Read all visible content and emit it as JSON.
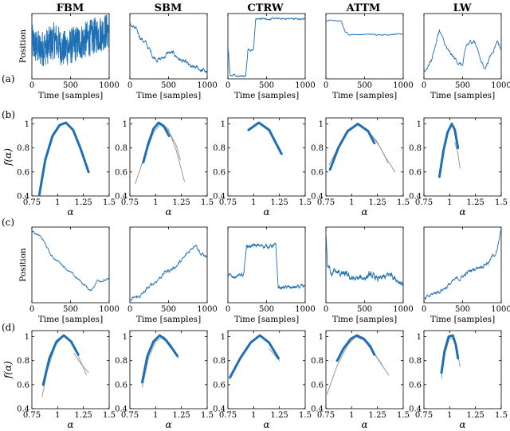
{
  "figure": {
    "row_labels": [
      "(a)",
      "(b)",
      "(c)",
      "(d)"
    ],
    "column_titles": [
      "FBM",
      "SBM",
      "CTRW",
      "ATTM",
      "LW"
    ],
    "position_ylabel": "Position",
    "time_xlabel": "Time [samples]",
    "alpha_xlabel": "α",
    "spectrum_ylabel": "f(α)",
    "colors": {
      "signal": "#1f6fb4",
      "fit_gray": "#9a9a9a",
      "axis": "#000000"
    }
  },
  "chart_data": [
    {
      "type": "line",
      "row": "a",
      "title": "FBM",
      "ylabel": "Position",
      "xlabel": "Time [samples]",
      "xlim": [
        0,
        1000
      ],
      "x_ticks": [
        "0",
        "500",
        "1000"
      ],
      "grid": false,
      "series": [
        {
          "color": "#1f6fb4",
          "shape": "fbm",
          "x": [
            0,
            100,
            200,
            300,
            400,
            500,
            600,
            700,
            800,
            900,
            1000
          ],
          "y": [
            0.55,
            0.45,
            0.5,
            0.6,
            0.45,
            0.5,
            0.55,
            0.6,
            0.65,
            0.7,
            0.75
          ]
        }
      ]
    },
    {
      "type": "line",
      "row": "a",
      "title": "SBM",
      "xlabel": "Time [samples]",
      "xlim": [
        0,
        1000
      ],
      "x_ticks": [
        "0",
        "500",
        "1000"
      ],
      "grid": false,
      "series": [
        {
          "color": "#1f6fb4",
          "shape": "sbm",
          "x": [
            0,
            100,
            200,
            300,
            400,
            500,
            600,
            700,
            800,
            900,
            1000
          ],
          "y": [
            0.85,
            0.7,
            0.55,
            0.35,
            0.3,
            0.4,
            0.35,
            0.25,
            0.15,
            0.15,
            0.1
          ]
        }
      ]
    },
    {
      "type": "line",
      "row": "a",
      "title": "CTRW",
      "xlabel": "Time [samples]",
      "xlim": [
        0,
        1000
      ],
      "x_ticks": [
        "0",
        "500",
        "1000"
      ],
      "grid": false,
      "series": [
        {
          "color": "#1f6fb4",
          "shape": "ctrw",
          "x": [
            0,
            30,
            230,
            260,
            330,
            360,
            1000
          ],
          "y": [
            0.5,
            0.05,
            0.05,
            0.45,
            0.45,
            0.92,
            0.92
          ]
        }
      ]
    },
    {
      "type": "line",
      "row": "a",
      "title": "ATTM",
      "xlabel": "Time [samples]",
      "xlim": [
        0,
        1000
      ],
      "x_ticks": [
        "0",
        "500",
        "1000"
      ],
      "grid": false,
      "series": [
        {
          "color": "#1f6fb4",
          "shape": "attm",
          "x": [
            0,
            50,
            200,
            250,
            300,
            1000
          ],
          "y": [
            0.88,
            0.9,
            0.88,
            0.72,
            0.68,
            0.68
          ]
        }
      ]
    },
    {
      "type": "line",
      "row": "a",
      "title": "LW",
      "xlabel": "Time [samples]",
      "xlim": [
        0,
        1000
      ],
      "x_ticks": [
        "0",
        "500",
        "1000"
      ],
      "grid": false,
      "series": [
        {
          "color": "#1f6fb4",
          "shape": "lw",
          "x": [
            0,
            100,
            200,
            260,
            320,
            400,
            500,
            550,
            650,
            780,
            880,
            950,
            1000
          ],
          "y": [
            0.1,
            0.3,
            0.75,
            0.55,
            0.4,
            0.3,
            0.2,
            0.5,
            0.6,
            0.15,
            0.4,
            0.6,
            0.45
          ]
        }
      ]
    },
    {
      "type": "line",
      "row": "b",
      "ylabel": "f(α)",
      "xlabel": "α",
      "xlim": [
        0.75,
        1.5
      ],
      "ylim": [
        0.4,
        1.05
      ],
      "x_ticks": [
        "0.75",
        "1",
        "1.25",
        "1.5"
      ],
      "y_ticks": [
        "0.4",
        "0.6",
        "0.8",
        "1"
      ],
      "grid": false,
      "series": [
        {
          "color": "#1f6fb4",
          "width": 3,
          "x": [
            0.82,
            0.88,
            0.95,
            1.02,
            1.08,
            1.15,
            1.22,
            1.3
          ],
          "y": [
            0.4,
            0.7,
            0.9,
            0.99,
            1.01,
            0.95,
            0.8,
            0.6
          ]
        }
      ]
    },
    {
      "type": "line",
      "row": "b",
      "xlabel": "α",
      "xlim": [
        0.75,
        1.5
      ],
      "ylim": [
        0.4,
        1.05
      ],
      "x_ticks": [
        "0.75",
        "1",
        "1.25",
        "1.5"
      ],
      "y_ticks": [
        "0.4",
        "0.6",
        "0.8",
        "1"
      ],
      "grid": false,
      "series": [
        {
          "color": "#9a9a9a",
          "width": 1,
          "x": [
            0.8,
            0.88,
            0.98,
            1.05,
            1.12,
            1.2,
            1.28
          ],
          "y": [
            0.5,
            0.7,
            0.93,
            1.0,
            0.96,
            0.78,
            0.52
          ]
        },
        {
          "color": "#9a9a9a",
          "width": 1,
          "x": [
            1.08,
            1.14,
            1.2,
            1.24
          ],
          "y": [
            0.99,
            0.92,
            0.82,
            0.7
          ]
        },
        {
          "color": "#1f6fb4",
          "width": 3,
          "x": [
            0.88,
            0.93,
            0.98,
            1.03,
            1.08,
            1.13
          ],
          "y": [
            0.68,
            0.84,
            0.96,
            1.01,
            0.98,
            0.9
          ]
        }
      ]
    },
    {
      "type": "line",
      "row": "b",
      "xlabel": "α",
      "xlim": [
        0.75,
        1.5
      ],
      "ylim": [
        0.4,
        1.05
      ],
      "x_ticks": [
        "0.75",
        "1",
        "1.25",
        "1.5"
      ],
      "y_ticks": [
        "0.4",
        "0.6",
        "0.8",
        "1"
      ],
      "grid": false,
      "series": [
        {
          "color": "#1f6fb4",
          "width": 3,
          "x": [
            0.95,
            1.05,
            1.15,
            1.27
          ],
          "y": [
            0.95,
            1.01,
            0.95,
            0.75
          ]
        }
      ]
    },
    {
      "type": "line",
      "row": "b",
      "xlabel": "α",
      "xlim": [
        0.75,
        1.5
      ],
      "ylim": [
        0.4,
        1.05
      ],
      "x_ticks": [
        "0.75",
        "1",
        "1.25",
        "1.5"
      ],
      "y_ticks": [
        "0.4",
        "0.6",
        "0.8",
        "1"
      ],
      "grid": false,
      "series": [
        {
          "color": "#9a9a9a",
          "width": 1,
          "x": [
            0.78,
            0.88,
            0.98,
            1.06,
            1.14,
            1.24,
            1.33,
            1.42
          ],
          "y": [
            0.66,
            0.82,
            0.95,
            1.0,
            0.96,
            0.86,
            0.72,
            0.6
          ]
        },
        {
          "color": "#9a9a9a",
          "width": 1,
          "x": [
            1.1,
            1.2,
            1.28,
            1.35
          ],
          "y": [
            0.98,
            0.9,
            0.8,
            0.68
          ]
        },
        {
          "color": "#1f6fb4",
          "width": 3,
          "x": [
            0.79,
            0.87,
            0.96,
            1.06,
            1.16,
            1.22
          ],
          "y": [
            0.62,
            0.8,
            0.94,
            1.0,
            0.94,
            0.84
          ]
        }
      ]
    },
    {
      "type": "line",
      "row": "b",
      "xlabel": "α",
      "xlim": [
        0.75,
        1.5
      ],
      "ylim": [
        0.4,
        1.05
      ],
      "x_ticks": [
        "0.75",
        "1",
        "1.25",
        "1.5"
      ],
      "y_ticks": [
        "0.4",
        "0.6",
        "0.8",
        "1"
      ],
      "grid": false,
      "series": [
        {
          "color": "#9a9a9a",
          "width": 1,
          "x": [
            1.05,
            1.08,
            1.1
          ],
          "y": [
            0.85,
            0.75,
            0.63
          ]
        },
        {
          "color": "#1f6fb4",
          "width": 3,
          "x": [
            0.9,
            0.94,
            0.98,
            1.02,
            1.05,
            1.08
          ],
          "y": [
            0.56,
            0.78,
            0.93,
            1.0,
            0.95,
            0.8
          ]
        }
      ]
    },
    {
      "type": "line",
      "row": "c",
      "title": "",
      "ylabel": "Position",
      "xlabel": "Time [samples]",
      "xlim": [
        0,
        1000
      ],
      "x_ticks": [
        "0",
        "500",
        "1000"
      ],
      "grid": false,
      "series": [
        {
          "color": "#1f6fb4",
          "shape": "c1",
          "x": [
            0,
            60,
            150,
            250,
            400,
            550,
            700,
            760,
            850,
            1000
          ],
          "y": [
            0.95,
            0.92,
            0.82,
            0.62,
            0.5,
            0.35,
            0.22,
            0.15,
            0.3,
            0.3
          ]
        }
      ]
    },
    {
      "type": "line",
      "row": "c",
      "xlabel": "Time [samples]",
      "xlim": [
        0,
        1000
      ],
      "x_ticks": [
        "0",
        "500",
        "1000"
      ],
      "grid": false,
      "series": [
        {
          "color": "#1f6fb4",
          "shape": "c2",
          "x": [
            0,
            150,
            300,
            450,
            550,
            700,
            850,
            920,
            1000
          ],
          "y": [
            0.02,
            0.1,
            0.25,
            0.4,
            0.45,
            0.58,
            0.8,
            0.65,
            0.6
          ]
        }
      ]
    },
    {
      "type": "line",
      "row": "c",
      "xlabel": "Time [samples]",
      "xlim": [
        0,
        1000
      ],
      "x_ticks": [
        "0",
        "500",
        "1000"
      ],
      "grid": false,
      "series": [
        {
          "color": "#1f6fb4",
          "shape": "c3",
          "x": [
            0,
            200,
            240,
            620,
            650,
            1000
          ],
          "y": [
            0.35,
            0.35,
            0.75,
            0.75,
            0.2,
            0.2
          ]
        }
      ]
    },
    {
      "type": "line",
      "row": "c",
      "xlabel": "Time [samples]",
      "xlim": [
        0,
        1000
      ],
      "x_ticks": [
        "0",
        "500",
        "1000"
      ],
      "grid": false,
      "series": [
        {
          "color": "#1f6fb4",
          "shape": "c4",
          "x": [
            0,
            20,
            60,
            200,
            400,
            550,
            700,
            850,
            1000
          ],
          "y": [
            0.95,
            0.5,
            0.42,
            0.38,
            0.3,
            0.36,
            0.3,
            0.38,
            0.25
          ]
        }
      ]
    },
    {
      "type": "line",
      "row": "c",
      "xlabel": "Time [samples]",
      "xlim": [
        0,
        1000
      ],
      "x_ticks": [
        "0",
        "500",
        "1000"
      ],
      "grid": false,
      "series": [
        {
          "color": "#1f6fb4",
          "shape": "c5",
          "x": [
            0,
            100,
            300,
            500,
            700,
            850,
            950,
            1000
          ],
          "y": [
            0.02,
            0.1,
            0.22,
            0.35,
            0.48,
            0.55,
            0.7,
            0.95
          ]
        }
      ]
    },
    {
      "type": "line",
      "row": "d",
      "ylabel": "f(α)",
      "xlabel": "α",
      "xlim": [
        0.75,
        1.5
      ],
      "ylim": [
        0.4,
        1.05
      ],
      "x_ticks": [
        "0.75",
        "1",
        "1.25",
        "1.5"
      ],
      "y_ticks": [
        "0.4",
        "0.6",
        "0.8",
        "1"
      ],
      "grid": false,
      "series": [
        {
          "color": "#9a9a9a",
          "width": 1,
          "x": [
            0.85,
            0.9,
            0.98,
            1.06,
            1.14,
            1.22,
            1.28
          ],
          "y": [
            0.5,
            0.72,
            0.93,
            1.01,
            0.96,
            0.8,
            0.68
          ]
        },
        {
          "color": "#9a9a9a",
          "width": 1,
          "x": [
            1.16,
            1.22,
            1.3
          ],
          "y": [
            0.86,
            0.78,
            0.7
          ]
        },
        {
          "color": "#1f6fb4",
          "width": 3,
          "x": [
            0.86,
            0.92,
            0.99,
            1.06,
            1.13,
            1.2
          ],
          "y": [
            0.6,
            0.82,
            0.96,
            1.01,
            0.96,
            0.85
          ]
        }
      ]
    },
    {
      "type": "line",
      "row": "d",
      "xlabel": "α",
      "xlim": [
        0.75,
        1.5
      ],
      "ylim": [
        0.4,
        1.05
      ],
      "x_ticks": [
        "0.75",
        "1",
        "1.25",
        "1.5"
      ],
      "y_ticks": [
        "0.4",
        "0.6",
        "0.8",
        "1"
      ],
      "grid": false,
      "series": [
        {
          "color": "#9a9a9a",
          "width": 1,
          "x": [
            0.87,
            0.93,
            1.0,
            1.08,
            1.15,
            1.22
          ],
          "y": [
            0.58,
            0.82,
            0.96,
            1.0,
            0.93,
            0.82
          ]
        },
        {
          "color": "#1f6fb4",
          "width": 3,
          "x": [
            0.87,
            0.92,
            0.98,
            1.04,
            1.1,
            1.17,
            1.21
          ],
          "y": [
            0.62,
            0.84,
            0.96,
            1.01,
            0.97,
            0.89,
            0.84
          ]
        }
      ]
    },
    {
      "type": "line",
      "row": "d",
      "xlabel": "α",
      "xlim": [
        0.75,
        1.5
      ],
      "ylim": [
        0.4,
        1.05
      ],
      "x_ticks": [
        "0.75",
        "1",
        "1.25",
        "1.5"
      ],
      "y_ticks": [
        "0.4",
        "0.6",
        "0.8",
        "1"
      ],
      "grid": false,
      "series": [
        {
          "color": "#9a9a9a",
          "width": 1,
          "x": [
            1.15,
            1.2,
            1.25
          ],
          "y": [
            0.9,
            0.85,
            0.8
          ]
        },
        {
          "color": "#1f6fb4",
          "width": 3,
          "x": [
            0.77,
            0.87,
            0.97,
            1.06,
            1.15,
            1.24
          ],
          "y": [
            0.66,
            0.82,
            0.95,
            1.01,
            0.95,
            0.82
          ]
        }
      ]
    },
    {
      "type": "line",
      "row": "d",
      "xlabel": "α",
      "xlim": [
        0.75,
        1.5
      ],
      "ylim": [
        0.4,
        1.05
      ],
      "x_ticks": [
        "0.75",
        "1",
        "1.25",
        "1.5"
      ],
      "y_ticks": [
        "0.4",
        "0.6",
        "0.8",
        "1"
      ],
      "grid": false,
      "series": [
        {
          "color": "#9a9a9a",
          "width": 1,
          "x": [
            0.76,
            0.86,
            0.96,
            1.04,
            1.12,
            1.2,
            1.28,
            1.36
          ],
          "y": [
            0.52,
            0.76,
            0.93,
            1.0,
            0.97,
            0.88,
            0.78,
            0.68
          ]
        },
        {
          "color": "#9a9a9a",
          "width": 1,
          "x": [
            1.14,
            1.22,
            1.3
          ],
          "y": [
            0.95,
            0.86,
            0.76
          ]
        },
        {
          "color": "#1f6fb4",
          "width": 3,
          "x": [
            0.86,
            0.92,
            0.99,
            1.05,
            1.12,
            1.18,
            1.22
          ],
          "y": [
            0.8,
            0.9,
            0.98,
            1.01,
            0.98,
            0.92,
            0.85
          ]
        }
      ]
    },
    {
      "type": "line",
      "row": "d",
      "xlabel": "α",
      "xlim": [
        0.75,
        1.5
      ],
      "ylim": [
        0.4,
        1.05
      ],
      "x_ticks": [
        "0.75",
        "1",
        "1.25",
        "1.5"
      ],
      "y_ticks": [
        "0.4",
        "0.6",
        "0.8",
        "1"
      ],
      "grid": false,
      "series": [
        {
          "color": "#9a9a9a",
          "width": 1,
          "x": [
            0.92,
            0.95,
            1.0,
            1.05,
            1.08,
            1.1
          ],
          "y": [
            0.65,
            0.85,
            0.99,
            0.97,
            0.85,
            0.75
          ]
        },
        {
          "color": "#1f6fb4",
          "width": 3,
          "x": [
            0.92,
            0.95,
            0.99,
            1.03,
            1.06,
            1.08
          ],
          "y": [
            0.7,
            0.88,
            1.0,
            1.01,
            0.93,
            0.82
          ]
        }
      ]
    }
  ]
}
